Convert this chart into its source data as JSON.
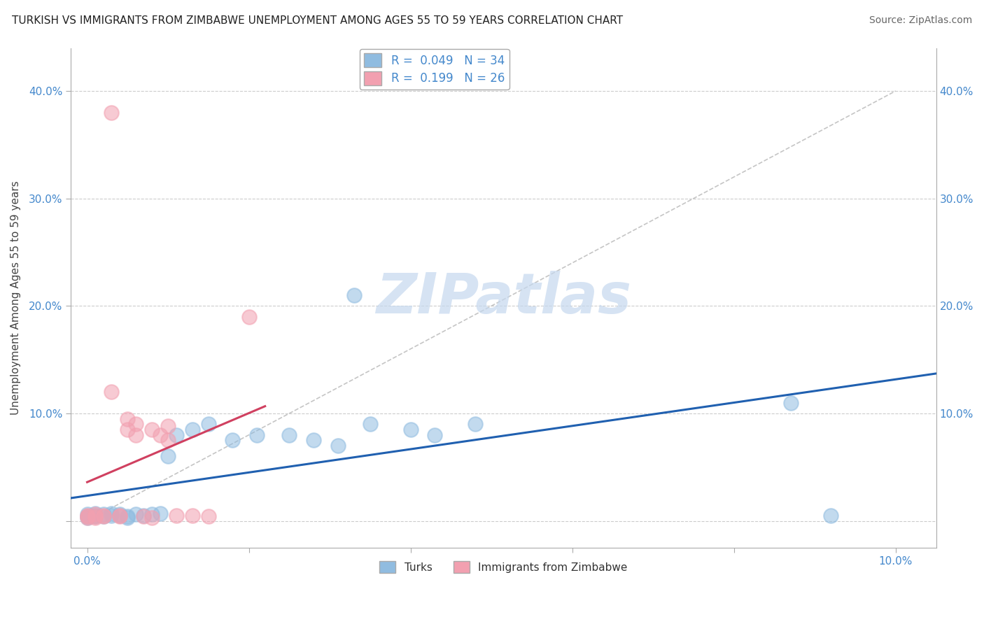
{
  "title": "TURKISH VS IMMIGRANTS FROM ZIMBABWE UNEMPLOYMENT AMONG AGES 55 TO 59 YEARS CORRELATION CHART",
  "source": "Source: ZipAtlas.com",
  "ylabel": "Unemployment Among Ages 55 to 59 years",
  "xlim": [
    -0.002,
    0.105
  ],
  "ylim": [
    -0.025,
    0.44
  ],
  "x_ticks": [
    0.0,
    0.02,
    0.04,
    0.06,
    0.08,
    0.1
  ],
  "x_tick_labels": [
    "0.0%",
    "",
    "",
    "",
    "",
    "10.0%"
  ],
  "y_ticks": [
    0.0,
    0.1,
    0.2,
    0.3,
    0.4
  ],
  "y_tick_labels_left": [
    "",
    "10.0%",
    "20.0%",
    "30.0%",
    "40.0%"
  ],
  "y_tick_labels_right": [
    "",
    "10.0%",
    "20.0%",
    "30.0%",
    "40.0%"
  ],
  "r_turks": 0.049,
  "n_turks": 34,
  "r_zimbabwe": 0.199,
  "n_zimbabwe": 26,
  "color_turks": "#90bce0",
  "color_zimbabwe": "#f2a0b0",
  "line_color_turks": "#2060b0",
  "line_color_zimbabwe": "#d04060",
  "diag_line_color": "#bbbbbb",
  "legend_label_turks": "Turks",
  "legend_label_zimbabwe": "Immigrants from Zimbabwe",
  "watermark": "ZIPatlas",
  "watermark_color": "#c5d8ee",
  "background_color": "#ffffff",
  "grid_color": "#cccccc",
  "tick_label_color": "#4488cc",
  "title_color": "#222222",
  "source_color": "#666666",
  "ylabel_color": "#444444",
  "turks_x": [
    0.0,
    0.0,
    0.0,
    0.001,
    0.001,
    0.001,
    0.002,
    0.002,
    0.003,
    0.003,
    0.004,
    0.004,
    0.005,
    0.005,
    0.006,
    0.007,
    0.008,
    0.009,
    0.01,
    0.011,
    0.013,
    0.015,
    0.018,
    0.021,
    0.025,
    0.028,
    0.031,
    0.035,
    0.04,
    0.043,
    0.048,
    0.033,
    0.087,
    0.092
  ],
  "turks_y": [
    0.004,
    0.006,
    0.003,
    0.005,
    0.007,
    0.004,
    0.006,
    0.004,
    0.005,
    0.007,
    0.005,
    0.006,
    0.004,
    0.003,
    0.006,
    0.005,
    0.006,
    0.007,
    0.06,
    0.08,
    0.085,
    0.09,
    0.075,
    0.08,
    0.08,
    0.075,
    0.07,
    0.09,
    0.085,
    0.08,
    0.09,
    0.21,
    0.11,
    0.005
  ],
  "zimbabwe_x": [
    0.0,
    0.0,
    0.0,
    0.001,
    0.001,
    0.001,
    0.002,
    0.002,
    0.003,
    0.004,
    0.004,
    0.005,
    0.005,
    0.006,
    0.006,
    0.007,
    0.008,
    0.008,
    0.009,
    0.01,
    0.01,
    0.011,
    0.013,
    0.015,
    0.02,
    0.003
  ],
  "zimbabwe_y": [
    0.004,
    0.005,
    0.003,
    0.006,
    0.004,
    0.003,
    0.005,
    0.004,
    0.12,
    0.005,
    0.004,
    0.085,
    0.095,
    0.09,
    0.08,
    0.004,
    0.003,
    0.085,
    0.08,
    0.088,
    0.075,
    0.005,
    0.005,
    0.004,
    0.19,
    0.38
  ]
}
